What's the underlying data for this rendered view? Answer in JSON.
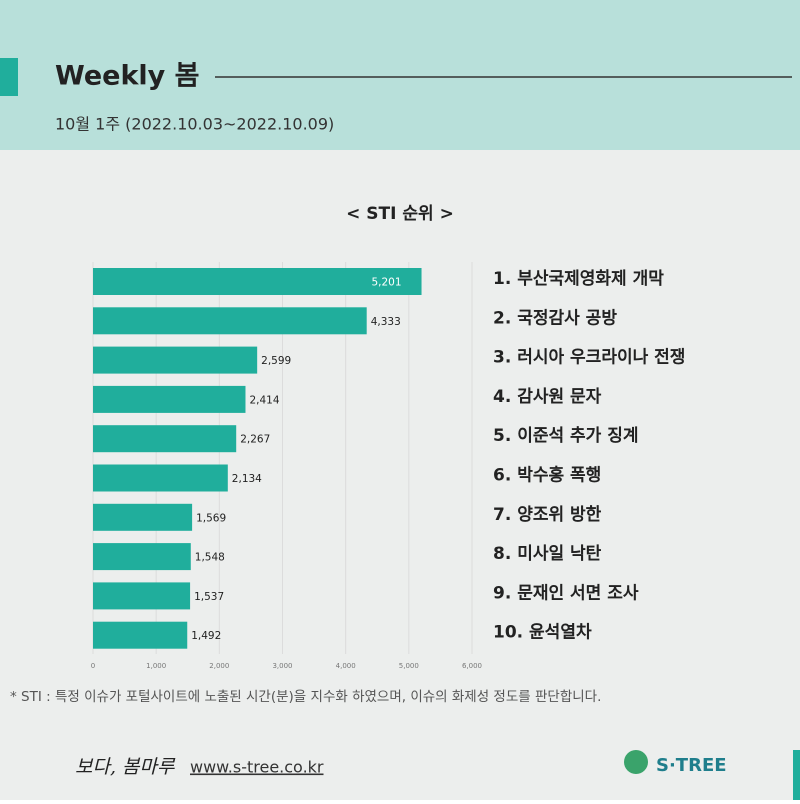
{
  "header": {
    "title": "Weekly 봄",
    "subtitle": "10월 1주 (2022.10.03~2022.10.09)"
  },
  "chart_data": {
    "type": "bar",
    "orientation": "horizontal",
    "title": "< STI 순위 >",
    "categories": [
      "1. 부산국제영화제 개막",
      "2. 국정감사 공방",
      "3. 러시아 우크라이나 전쟁",
      "4. 감사원 문자",
      "5. 이준석 추가 징계",
      "6. 박수홍 폭행",
      "7. 양조위 방한",
      "8. 미사일 낙탄",
      "9. 문재인 서면 조사",
      "10. 윤석열차"
    ],
    "values": [
      5201,
      4333,
      2599,
      2414,
      2267,
      2134,
      1569,
      1548,
      1537,
      1492
    ],
    "value_labels": [
      "5,201",
      "4,333",
      "2,599",
      "2,414",
      "2,267",
      "2,134",
      "1,569",
      "1,548",
      "1,537",
      "1,492"
    ],
    "color": "#20ae9c",
    "xlim": [
      0,
      6000
    ],
    "xticks": [
      0,
      {
        "value": 1000,
        "label": "1,000"
      },
      {
        "value": 2000,
        "label": "2,000"
      },
      {
        "value": 3000,
        "label": "3,000"
      },
      {
        "value": 4000,
        "label": "4,000"
      },
      {
        "value": 5000,
        "label": "5,000"
      },
      {
        "value": 6000,
        "label": "6,000"
      }
    ],
    "grid": true
  },
  "footnote": "* STI : 특정 이슈가 포털사이트에 노출된 시간(분)을 지수화 하였으며, 이슈의 화제성 정도를 판단합니다.",
  "footer": {
    "brand": "보다, 봄마루",
    "url": "www.s-tree.co.kr",
    "logo": "S·TREE"
  }
}
